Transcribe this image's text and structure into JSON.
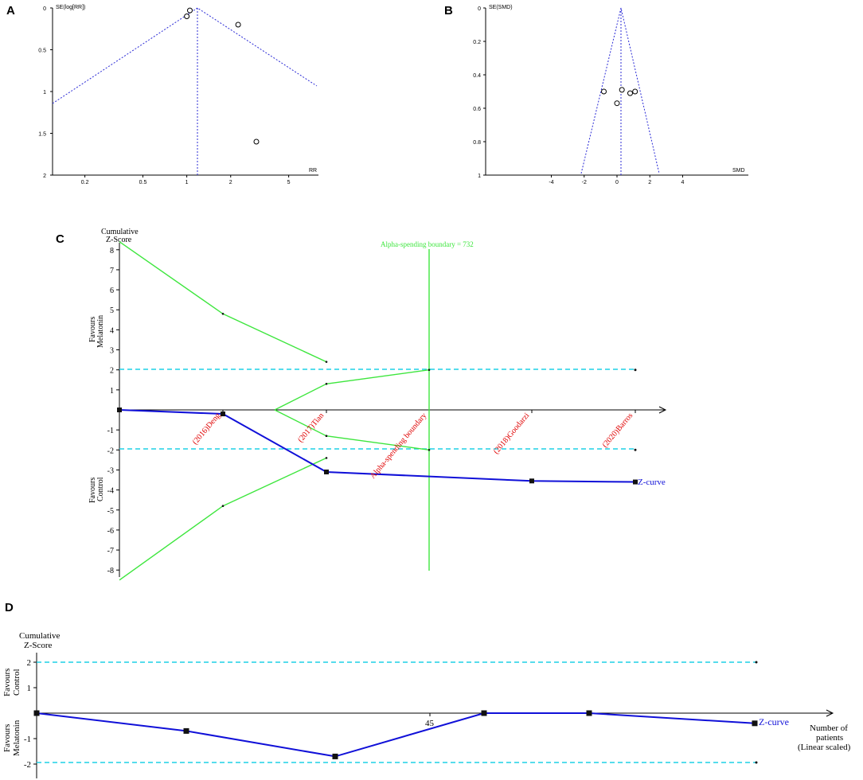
{
  "panels": {
    "a": {
      "letter": "A",
      "ylabel": "SE(log[RR])",
      "xlabel": "RR",
      "yticks": [
        "0",
        "0.5",
        "1",
        "1.5",
        "2"
      ],
      "xticks": [
        "0.2",
        "0.5",
        "1",
        "2",
        "5"
      ]
    },
    "b": {
      "letter": "B",
      "ylabel": "SE(SMD)",
      "xlabel": "SMD",
      "yticks": [
        "0",
        "0.2",
        "0.4",
        "0.6",
        "0.8",
        "1"
      ],
      "xticks": [
        "-4",
        "-2",
        "0",
        "2",
        "4"
      ]
    },
    "c": {
      "letter": "C",
      "ylabel_line1": "Cumulative",
      "ylabel_line2": "Z-Score",
      "side_top_line1": "Favours",
      "side_top_line2": "Melatonin",
      "side_bottom_line1": "Favours",
      "side_bottom_line2": "Control",
      "boundary_label": "Alpha-spending boundary = 732",
      "boundary_rot_label": "Alpha-spending boundary",
      "zcurve_label": "Z-curve",
      "yticks": [
        "8",
        "7",
        "6",
        "5",
        "4",
        "3",
        "2",
        "1",
        "-1",
        "-2",
        "-3",
        "-4",
        "-5",
        "-6",
        "-7",
        "-8"
      ]
    },
    "d": {
      "letter": "D",
      "ylabel_line1": "Cumulative",
      "ylabel_line2": "Z-Score",
      "side_top_line1": "Favours",
      "side_top_line2": "Control",
      "side_bottom_line1": "Favours",
      "side_bottom_line2": "Melatonin",
      "xtick": "45",
      "xlabel_line1": "Number of",
      "xlabel_line2": "patients",
      "xlabel_line3": "(Linear scaled)",
      "zcurve_label": "Z-curve",
      "yticks": [
        "2",
        "1",
        "-1",
        "-2"
      ]
    }
  },
  "colors": {
    "funnel": "#2b2bd6",
    "boundary": "#3ee63e",
    "threshold": "#1fd0e6",
    "zcurve": "#1010d8",
    "study_labels": "#e00000"
  },
  "chart_data": [
    {
      "type": "scatter",
      "panel": "A",
      "xlabel": "RR",
      "ylabel": "SE(log[RR])",
      "x_scale": "log",
      "xlim": [
        0.12,
        8
      ],
      "ylim": [
        2,
        0
      ],
      "points": [
        {
          "x": 1.0,
          "y": 0.1
        },
        {
          "x": 1.05,
          "y": 0.03
        },
        {
          "x": 2.25,
          "y": 0.2
        },
        {
          "x": 3.0,
          "y": 1.6
        }
      ],
      "pooled_estimate": 1.2
    },
    {
      "type": "scatter",
      "panel": "B",
      "xlabel": "SMD",
      "ylabel": "SE(SMD)",
      "xlim": [
        -8,
        8
      ],
      "ylim": [
        1,
        0
      ],
      "points": [
        {
          "x": -0.8,
          "y": 0.5
        },
        {
          "x": 0.0,
          "y": 0.57
        },
        {
          "x": 0.3,
          "y": 0.49
        },
        {
          "x": 0.8,
          "y": 0.51
        },
        {
          "x": 1.1,
          "y": 0.5
        }
      ],
      "pooled_estimate": 0.35
    },
    {
      "type": "line",
      "panel": "C",
      "ylabel": "Cumulative Z-Score",
      "ylim": [
        -8,
        8
      ],
      "study_labels": [
        "(2016)Deng",
        "(2017)Tian",
        "Alpha-spending boundary",
        "(2018)Goodarzi",
        "(2020)Barros"
      ],
      "x_index": [
        0,
        1,
        2,
        3,
        4,
        5
      ],
      "series": [
        {
          "name": "Z-curve",
          "points": [
            [
              0,
              0
            ],
            [
              1,
              -0.2
            ],
            [
              2,
              -3.1
            ],
            [
              4,
              -3.55
            ],
            [
              5,
              -3.6
            ]
          ]
        },
        {
          "points": [
            [
              0,
              8.4
            ],
            [
              1,
              4.8
            ],
            [
              2,
              2.4
            ]
          ]
        },
        {
          "points": [
            [
              0,
              -8.5
            ],
            [
              1,
              -4.8
            ],
            [
              2,
              -2.4
            ]
          ]
        },
        {
          "points": [
            [
              1.5,
              0
            ],
            [
              2,
              1.3
            ],
            [
              3,
              2.0
            ]
          ]
        },
        {
          "points": [
            [
              1.5,
              0
            ],
            [
              2,
              -1.3
            ],
            [
              3,
              -2.0
            ]
          ]
        }
      ],
      "thresholds": [
        2,
        -2
      ]
    },
    {
      "type": "line",
      "panel": "D",
      "ylabel": "Cumulative Z-Score",
      "xlabel": "Number of patients (Linear scaled)",
      "ylim": [
        -2.2,
        2.2
      ],
      "series": [
        {
          "name": "Z-curve",
          "points": [
            [
              0,
              0
            ],
            [
              1,
              -0.7
            ],
            [
              2,
              -1.7
            ],
            [
              3,
              0
            ],
            [
              4,
              0
            ],
            [
              5,
              -0.4
            ]
          ]
        }
      ],
      "thresholds": [
        2,
        -2
      ]
    }
  ]
}
